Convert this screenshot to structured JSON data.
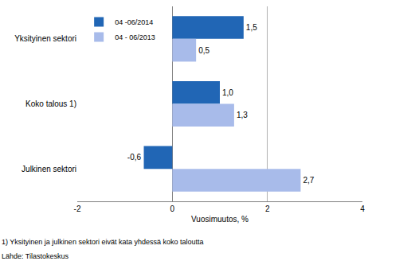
{
  "chart_data": {
    "type": "bar",
    "orientation": "horizontal",
    "categories": [
      "Yksityinen sektori",
      "Koko talous 1)",
      "Julkinen sektori"
    ],
    "series": [
      {
        "name": "04 -06/2014",
        "color": "#2166b5",
        "values": [
          1.5,
          1.0,
          -0.6
        ],
        "value_labels": [
          "1,5",
          "1,0",
          "-0,6"
        ]
      },
      {
        "name": "04 - 06/2013",
        "color": "#a8bbea",
        "values": [
          0.5,
          1.3,
          2.7
        ],
        "value_labels": [
          "0,5",
          "1,3",
          "2,7"
        ]
      }
    ],
    "xlabel": "Vuosimuutos, %",
    "xlim": [
      -2,
      4
    ],
    "xticks": [
      -2,
      0,
      2,
      4
    ],
    "grid": true,
    "legend": "upper left",
    "data_labels": true,
    "annotations": [
      "1) Yksityinen ja julkinen sektori eivät kata yhdessä koko taloutta",
      "Lähde: Tilastokeskus"
    ]
  }
}
